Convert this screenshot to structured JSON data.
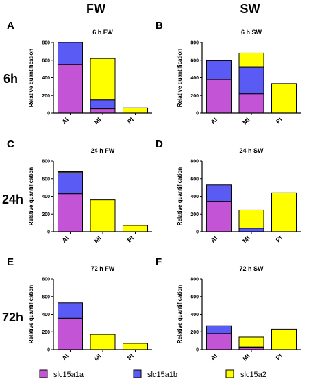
{
  "column_headers": [
    "FW",
    "SW"
  ],
  "row_headers": [
    "6h",
    "24h",
    "72h"
  ],
  "legend": [
    {
      "label": "slc15a1a",
      "color": "#c354d6"
    },
    {
      "label": "slc15a1b",
      "color": "#5a5af5"
    },
    {
      "label": "slc15a2",
      "color": "#ffff00"
    }
  ],
  "chart_data": [
    {
      "type": "bar",
      "letter": "A",
      "title": "6 h FW",
      "ylabel": "Relative quantification",
      "categories": [
        "AI",
        "MI",
        "PI"
      ],
      "ylim": [
        0,
        800
      ],
      "yticks": [
        0,
        200,
        400,
        600,
        800
      ],
      "series": [
        {
          "name": "slc15a1a",
          "values": [
            550,
            50,
            0
          ]
        },
        {
          "name": "slc15a1b",
          "values": [
            250,
            100,
            0
          ]
        },
        {
          "name": "slc15a2",
          "values": [
            0,
            470,
            60
          ]
        }
      ]
    },
    {
      "type": "bar",
      "letter": "B",
      "title": "6 h SW",
      "ylabel": "Relative quantification",
      "categories": [
        "AI",
        "MI",
        "PI"
      ],
      "ylim": [
        0,
        800
      ],
      "yticks": [
        0,
        200,
        400,
        600,
        800
      ],
      "series": [
        {
          "name": "slc15a1a",
          "values": [
            380,
            220,
            0
          ]
        },
        {
          "name": "slc15a1b",
          "values": [
            215,
            300,
            0
          ]
        },
        {
          "name": "slc15a2",
          "values": [
            0,
            160,
            335
          ]
        }
      ]
    },
    {
      "type": "bar",
      "letter": "C",
      "title": "24 h FW",
      "ylabel": "Relative quantification",
      "categories": [
        "AI",
        "MI",
        "PI"
      ],
      "ylim": [
        0,
        800
      ],
      "yticks": [
        0,
        200,
        400,
        600,
        800
      ],
      "series": [
        {
          "name": "slc15a1a",
          "values": [
            430,
            0,
            0
          ]
        },
        {
          "name": "slc15a1b",
          "values": [
            240,
            0,
            0
          ]
        },
        {
          "name": "slc15a2",
          "values": [
            10,
            360,
            70
          ]
        }
      ]
    },
    {
      "type": "bar",
      "letter": "D",
      "title": "24 h SW",
      "ylabel": "Relative quantification",
      "categories": [
        "AI",
        "MI",
        "PI"
      ],
      "ylim": [
        0,
        800
      ],
      "yticks": [
        0,
        200,
        400,
        600,
        800
      ],
      "series": [
        {
          "name": "slc15a1a",
          "values": [
            340,
            0,
            0
          ]
        },
        {
          "name": "slc15a1b",
          "values": [
            190,
            40,
            0
          ]
        },
        {
          "name": "slc15a2",
          "values": [
            0,
            205,
            440
          ]
        }
      ]
    },
    {
      "type": "bar",
      "letter": "E",
      "title": "72 h FW",
      "ylabel": "Relative quantification",
      "categories": [
        "AI",
        "MI",
        "PI"
      ],
      "ylim": [
        0,
        800
      ],
      "yticks": [
        0,
        200,
        400,
        600,
        800
      ],
      "series": [
        {
          "name": "slc15a1a",
          "values": [
            355,
            0,
            0
          ]
        },
        {
          "name": "slc15a1b",
          "values": [
            175,
            0,
            0
          ]
        },
        {
          "name": "slc15a2",
          "values": [
            0,
            170,
            70
          ]
        }
      ]
    },
    {
      "type": "bar",
      "letter": "F",
      "title": "72 h SW",
      "ylabel": "Relative quantification",
      "categories": [
        "AI",
        "MI",
        "PI"
      ],
      "ylim": [
        0,
        800
      ],
      "yticks": [
        0,
        200,
        400,
        600,
        800
      ],
      "series": [
        {
          "name": "slc15a1a",
          "values": [
            180,
            20,
            0
          ]
        },
        {
          "name": "slc15a1b",
          "values": [
            90,
            10,
            0
          ]
        },
        {
          "name": "slc15a2",
          "values": [
            0,
            110,
            230
          ]
        }
      ]
    }
  ]
}
